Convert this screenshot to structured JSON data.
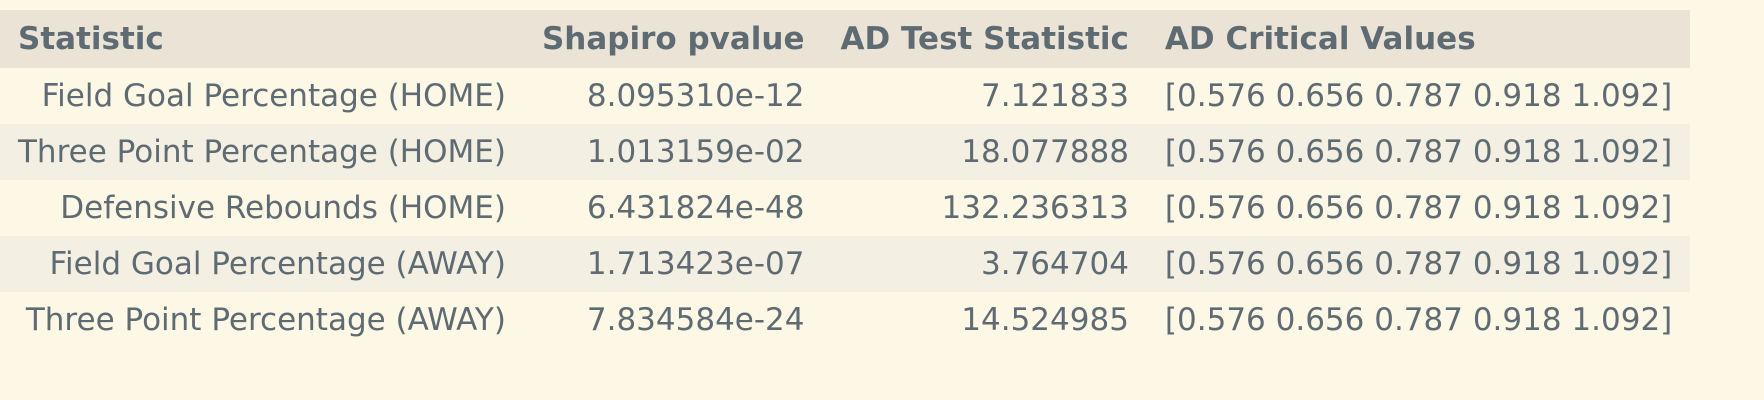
{
  "table": {
    "headers": [
      "Statistic",
      "Shapiro pvalue",
      "AD Test Statistic",
      "AD Critical Values"
    ],
    "rows": [
      [
        "Field Goal Percentage (HOME)",
        "8.095310e-12",
        "7.121833",
        "[0.576 0.656 0.787 0.918 1.092]"
      ],
      [
        "Three Point Percentage (HOME)",
        "1.013159e-02",
        "18.077888",
        "[0.576 0.656 0.787 0.918 1.092]"
      ],
      [
        "Defensive Rebounds (HOME)",
        "6.431824e-48",
        "132.236313",
        "[0.576 0.656 0.787 0.918 1.092]"
      ],
      [
        "Field Goal Percentage (AWAY)",
        "1.713423e-07",
        "3.764704",
        "[0.576 0.656 0.787 0.918 1.092]"
      ],
      [
        "Three Point Percentage (AWAY)",
        "7.834584e-24",
        "14.524985",
        "[0.576 0.656 0.787 0.918 1.092]"
      ]
    ]
  }
}
